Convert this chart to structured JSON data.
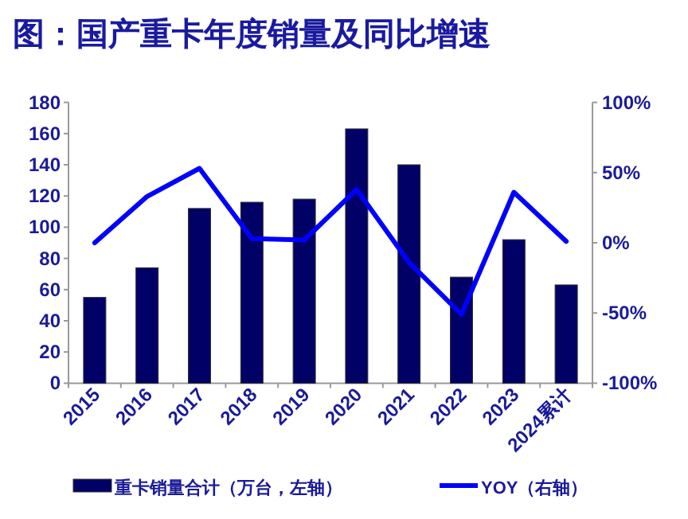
{
  "chart_data": {
    "type": "bar",
    "title": "图：国产重卡年度销量及同比增速",
    "categories": [
      "2015",
      "2016",
      "2017",
      "2018",
      "2019",
      "2020",
      "2021",
      "2022",
      "2023",
      "2024累计"
    ],
    "series": [
      {
        "name": "重卡销量合计（万台，左轴）",
        "color": "#000066",
        "values": [
          55,
          74,
          112,
          116,
          118,
          163,
          140,
          68,
          92,
          63
        ]
      },
      {
        "name": "YOY（右轴）",
        "type": "line",
        "axis": "y2",
        "color": "#0000ff",
        "values": [
          0,
          33,
          53,
          3,
          2,
          38,
          -14,
          -51,
          36,
          1
        ]
      }
    ],
    "ylim": [
      0,
      180
    ],
    "yticks": [
      0,
      20,
      40,
      60,
      80,
      100,
      120,
      140,
      160,
      180
    ],
    "y2lim": [
      -100,
      100
    ],
    "y2ticks": [
      {
        "value": -100,
        "label": "-100%"
      },
      {
        "value": -50,
        "label": "-50%"
      },
      {
        "value": 0,
        "label": "0%"
      },
      {
        "value": 50,
        "label": "50%"
      },
      {
        "value": 100,
        "label": "100%"
      }
    ],
    "grid": false,
    "legend": "bottom",
    "marker": "none",
    "line_style": "solid"
  }
}
